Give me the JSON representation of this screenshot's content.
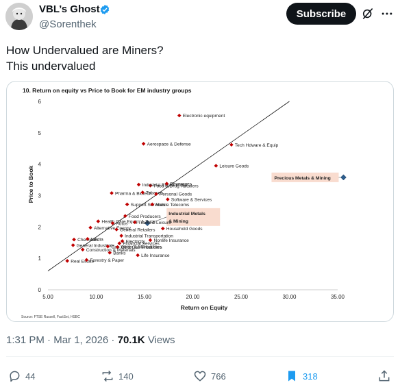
{
  "author": {
    "name": "VBL’s Ghost",
    "handle": "@Sorenthek",
    "subscribe_label": "Subscribe"
  },
  "icons": {
    "avatar": "avatar-image",
    "verified": "verified-badge-icon",
    "grok": "grok-icon",
    "more": "more-icon",
    "reply": "reply-icon",
    "repost": "repost-icon",
    "like": "like-icon",
    "bookmark": "bookmark-icon",
    "share": "share-icon"
  },
  "tweet": {
    "line1": "How Undervalued are Miners?",
    "line2": "This undervalued"
  },
  "meta": {
    "time": "1:31 PM",
    "date": "Mar 1, 2026",
    "views_count": "70.1K",
    "views_label": "Views"
  },
  "actions": {
    "replies": "44",
    "reposts": "140",
    "likes": "766",
    "bookmarks": "318"
  },
  "colors": {
    "accent": "#1d9bf0",
    "point": "#c00000",
    "highlight_point": "#2e5e8e",
    "highlight_box": "#f9dccf"
  },
  "chart_data": {
    "type": "scatter",
    "title": "10. Return on equity vs Price to Book for EM industry groups",
    "xlabel": "Return on Equity",
    "ylabel": "Price to Book",
    "source": "Source: FTSE Russell, FactSet, HSBC",
    "xlim": [
      5,
      35
    ],
    "ylim": [
      0,
      6
    ],
    "xticks": [
      "5.00",
      "10.00",
      "15.00",
      "20.00",
      "25.00",
      "30.00",
      "35.00"
    ],
    "yticks": [
      "0",
      "1",
      "2",
      "3",
      "4",
      "5",
      "6"
    ],
    "trendline": [
      [
        5,
        0.6
      ],
      [
        30,
        6.0
      ]
    ],
    "points": [
      {
        "label": "Electronic equipment",
        "x": 18.6,
        "y": 5.55
      },
      {
        "label": "Aerospace & Defense",
        "x": 14.9,
        "y": 4.65
      },
      {
        "label": "Tech Hdware & Equip",
        "x": 24.0,
        "y": 4.62
      },
      {
        "label": "Leisure Goods",
        "x": 22.4,
        "y": 3.95
      },
      {
        "label": "Food & Drug Retailers",
        "x": 15.6,
        "y": 3.32
      },
      {
        "label": "Industrial Engineering",
        "x": 14.4,
        "y": 3.35
      },
      {
        "label": "Beverages",
        "x": 17.3,
        "y": 3.38
      },
      {
        "label": "Pharma & Biotech",
        "x": 11.6,
        "y": 3.08
      },
      {
        "label": "Tobacco",
        "x": 14.8,
        "y": 3.1
      },
      {
        "label": "Personal Goods",
        "x": 16.2,
        "y": 3.05
      },
      {
        "label": "Software & Services",
        "x": 17.4,
        "y": 2.88
      },
      {
        "label": "Support Services",
        "x": 13.2,
        "y": 2.72
      },
      {
        "label": "Mobile Telecoms",
        "x": 15.8,
        "y": 2.72
      },
      {
        "label": "Food Producers",
        "x": 13.0,
        "y": 2.35
      },
      {
        "label": "Health Care Equip. & Svcs.",
        "x": 10.2,
        "y": 2.18
      },
      {
        "label": "Travel & Leisure",
        "x": 14.0,
        "y": 2.15
      },
      {
        "label": "Autos",
        "x": 11.7,
        "y": 2.12
      },
      {
        "label": "Alternative Energy",
        "x": 9.4,
        "y": 1.98
      },
      {
        "label": "General Retailers",
        "x": 12.1,
        "y": 1.92
      },
      {
        "label": "Household Goods",
        "x": 16.9,
        "y": 1.95
      },
      {
        "label": "Industrial Transportation",
        "x": 12.6,
        "y": 1.72
      },
      {
        "label": "Chemicals",
        "x": 7.7,
        "y": 1.6
      },
      {
        "label": "Media",
        "x": 9.1,
        "y": 1.62
      },
      {
        "label": "Electricity",
        "x": 12.7,
        "y": 1.55
      },
      {
        "label": "Nonlife Insurance",
        "x": 15.6,
        "y": 1.58
      },
      {
        "label": "Financial Services",
        "x": 12.4,
        "y": 1.48
      },
      {
        "label": "General Industrials",
        "x": 7.6,
        "y": 1.42
      },
      {
        "label": "Gas Water & Multiutilities",
        "x": 11.2,
        "y": 1.38
      },
      {
        "label": "Oil & Gas Producers",
        "x": 12.2,
        "y": 1.36
      },
      {
        "label": "Construction & Materials",
        "x": 8.6,
        "y": 1.28
      },
      {
        "label": "Banks",
        "x": 11.4,
        "y": 1.18
      },
      {
        "label": "Life Insurance",
        "x": 14.3,
        "y": 1.1
      },
      {
        "label": "Real Estate",
        "x": 7.0,
        "y": 0.92
      },
      {
        "label": "Forestry & Paper",
        "x": 9.0,
        "y": 0.95
      }
    ],
    "highlights": [
      {
        "label": "Precious Metals & Mining",
        "x": 35.6,
        "y": 3.58
      },
      {
        "label": "Industrial Metals & Mining",
        "x": 15.3,
        "y": 2.12
      }
    ]
  }
}
